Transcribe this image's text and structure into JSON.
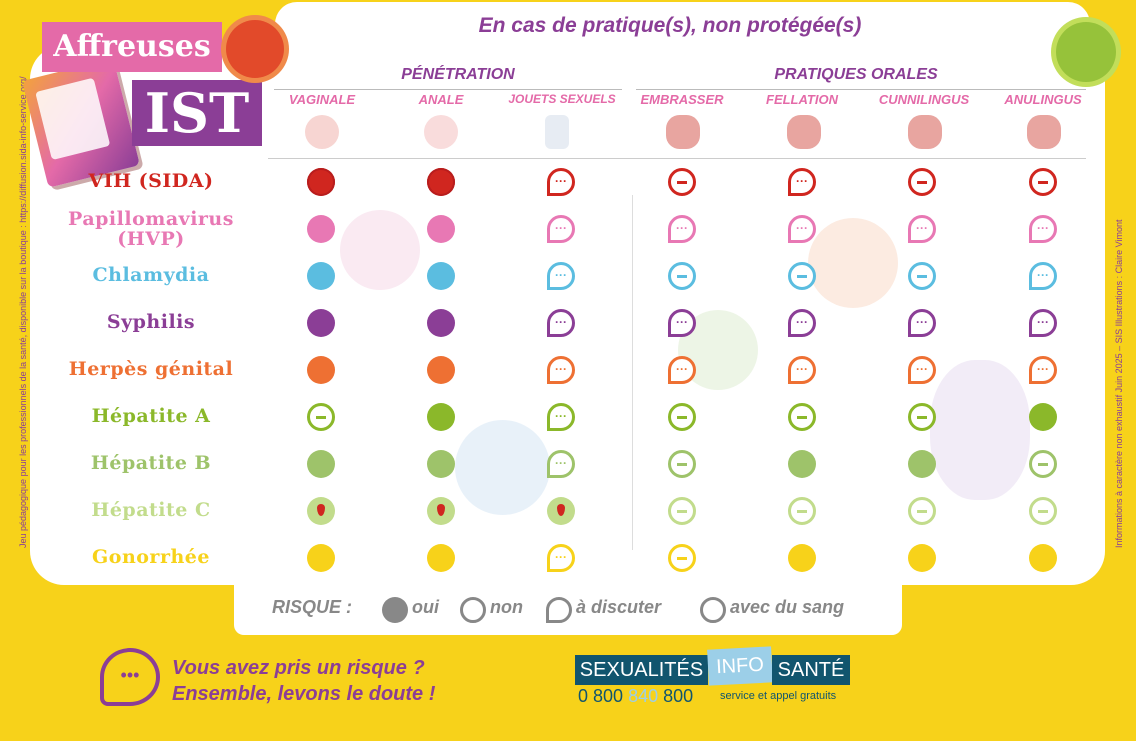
{
  "header": {
    "subtitle": "En cas de pratique(s), non protégée(s)"
  },
  "logo": {
    "line1": "Affreuses",
    "line2": "IST"
  },
  "side_text": {
    "left": "Jeu pédagogique pour les professionnels de la santé, disponible sur la boutique : https://diffusion.sida-info-service.org/",
    "right": "Informations à caractère non exhaustif   Juin 2025 – SIS   Illustrations : Claire Vimont"
  },
  "groups": [
    {
      "label": "PÉNÉTRATION"
    },
    {
      "label": "PRATIQUES ORALES"
    }
  ],
  "columns": [
    "VAGINALE",
    "ANALE",
    "JOUETS SEXUELS",
    "EMBRASSER",
    "FELLATION",
    "CUNNILINGUS",
    "ANULINGUS"
  ],
  "rows": [
    {
      "label": "VIH (SIDA)",
      "color": "#d0261f",
      "cells": [
        "oui",
        "oui",
        "disc",
        "non",
        "disc",
        "non",
        "non"
      ]
    },
    {
      "label": "Papillomavirus (HVP)",
      "color": "#e878b4",
      "cells": [
        "oui",
        "oui",
        "disc",
        "disc",
        "disc",
        "disc",
        "disc"
      ]
    },
    {
      "label": "Chlamydia",
      "color": "#5bbde0",
      "cells": [
        "oui",
        "oui",
        "disc",
        "non",
        "non",
        "non",
        "disc"
      ]
    },
    {
      "label": "Syphilis",
      "color": "#8b3e96",
      "cells": [
        "oui",
        "oui",
        "disc",
        "disc",
        "disc",
        "disc",
        "disc"
      ]
    },
    {
      "label": "Herpès génital",
      "color": "#ee7033",
      "cells": [
        "oui",
        "oui",
        "disc",
        "disc",
        "disc",
        "disc",
        "disc"
      ]
    },
    {
      "label": "Hépatite A",
      "color": "#8bb82a",
      "cells": [
        "non",
        "oui",
        "disc",
        "non",
        "non",
        "non",
        "oui"
      ]
    },
    {
      "label": "Hépatite B",
      "color": "#9ec36a",
      "cells": [
        "oui",
        "oui",
        "disc",
        "non",
        "oui",
        "oui",
        "non"
      ]
    },
    {
      "label": "Hépatite C",
      "color": "#c2dc8c",
      "cells": [
        "blood",
        "blood",
        "blood",
        "non",
        "non",
        "non",
        "non"
      ]
    },
    {
      "label": "Gonorrhée",
      "color": "#f7d21a",
      "cells": [
        "oui",
        "oui",
        "disc",
        "non",
        "oui",
        "oui",
        "oui"
      ]
    }
  ],
  "legend": {
    "title": "RISQUE :",
    "oui": "oui",
    "non": "non",
    "disc": "à discuter",
    "blood": "avec du sang"
  },
  "footer": {
    "cta_line1": "Vous avez pris un risque ?",
    "cta_line2": "Ensemble, levons le doute !",
    "brand1": "SEXUALITÉS",
    "brand2": "INFO",
    "brand3": "SANTÉ",
    "phone_a": "0 800",
    "phone_b": "840",
    "phone_c": "800",
    "free": "service et appel gratuits"
  }
}
